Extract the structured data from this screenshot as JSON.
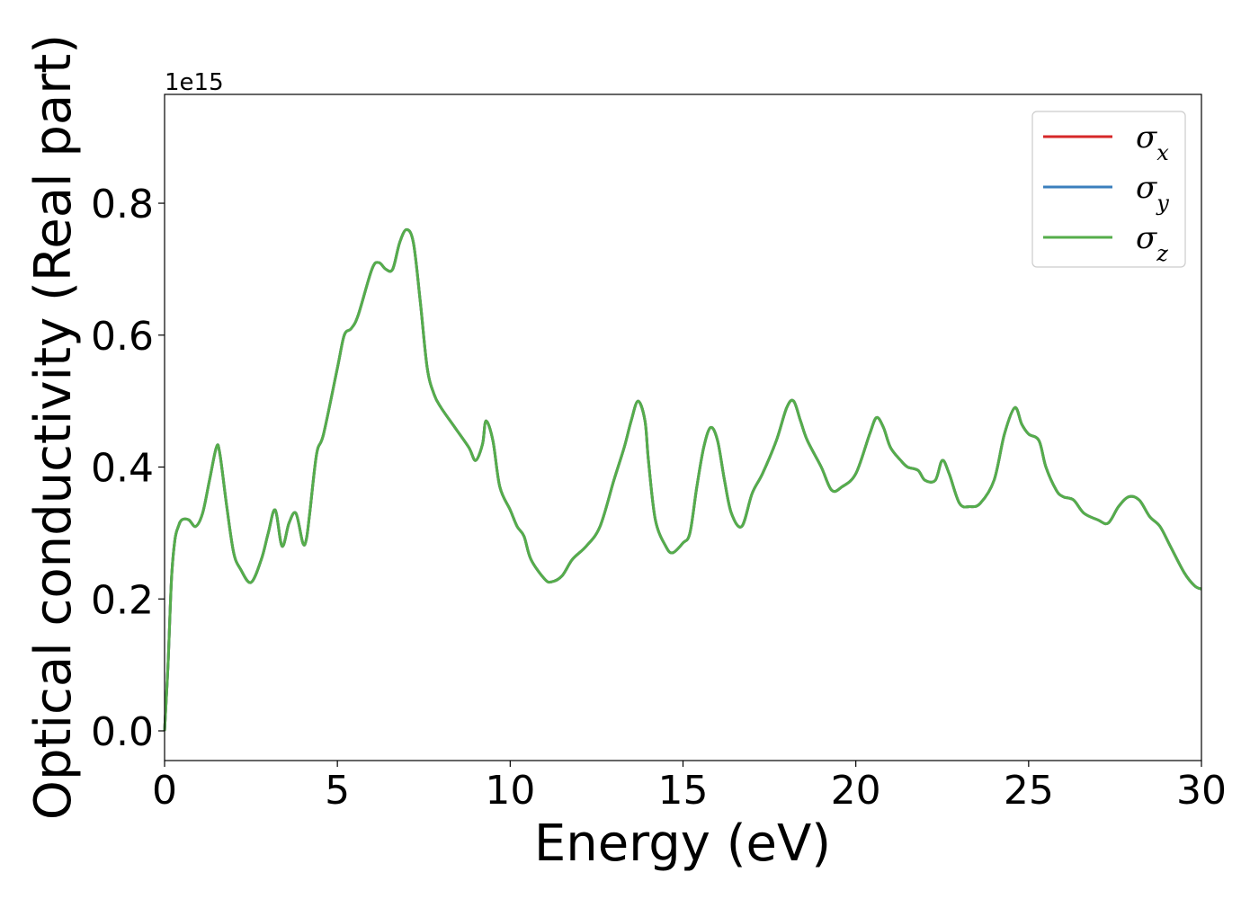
{
  "chart_data": {
    "type": "line",
    "title": "",
    "xlabel": "Energy (eV)",
    "ylabel": "Optical conductivity (Real part)",
    "y_offset_label": "1e15",
    "xlim": [
      0,
      30
    ],
    "ylim": [
      -0.045,
      0.965
    ],
    "y_scale_factor": 1000000000000000.0,
    "grid": false,
    "legend_position": "top-right",
    "x_ticks": [
      0,
      5,
      10,
      15,
      20,
      25,
      30
    ],
    "x_tick_labels": [
      "0",
      "5",
      "10",
      "15",
      "20",
      "25",
      "30"
    ],
    "y_ticks": [
      0.0,
      0.2,
      0.4,
      0.6,
      0.8
    ],
    "y_tick_labels": [
      "0.0",
      "0.2",
      "0.4",
      "0.6",
      "0.8"
    ],
    "series": [
      {
        "name": "σx",
        "label_base": "σ",
        "label_sub": "x",
        "color": "#d62728"
      },
      {
        "name": "σy",
        "label_base": "σ",
        "label_sub": "y",
        "color": "#3a7fbd"
      },
      {
        "name": "σz",
        "label_base": "σ",
        "label_sub": "z",
        "color": "#55ad4b"
      }
    ],
    "x": [
      0,
      0.1,
      0.2,
      0.3,
      0.4,
      0.5,
      0.7,
      0.9,
      1.1,
      1.3,
      1.5,
      1.6,
      1.8,
      2.0,
      2.2,
      2.5,
      2.8,
      3.0,
      3.2,
      3.4,
      3.6,
      3.8,
      4.0,
      4.1,
      4.2,
      4.4,
      4.6,
      5.0,
      5.2,
      5.4,
      5.6,
      6.0,
      6.2,
      6.4,
      6.6,
      6.8,
      7.0,
      7.2,
      7.4,
      7.6,
      7.8,
      8.0,
      8.4,
      8.8,
      9.0,
      9.2,
      9.3,
      9.5,
      9.7,
      10.0,
      10.2,
      10.4,
      10.6,
      11.0,
      11.2,
      11.5,
      11.8,
      12.2,
      12.6,
      13.0,
      13.3,
      13.5,
      13.7,
      13.9,
      14.0,
      14.2,
      14.5,
      14.7,
      15.0,
      15.2,
      15.4,
      15.6,
      15.8,
      16.0,
      16.2,
      16.4,
      16.7,
      17.0,
      17.3,
      17.7,
      18.0,
      18.2,
      18.4,
      18.6,
      19.0,
      19.3,
      19.6,
      20.0,
      20.4,
      20.6,
      20.8,
      21.0,
      21.3,
      21.5,
      21.8,
      22.0,
      22.3,
      22.5,
      22.7,
      23.0,
      23.3,
      23.6,
      24.0,
      24.3,
      24.6,
      24.8,
      25.0,
      25.3,
      25.5,
      25.8,
      26.0,
      26.3,
      26.6,
      27.0,
      27.3,
      27.6,
      27.9,
      28.2,
      28.5,
      28.8,
      29.1,
      29.5,
      29.8,
      30.0
    ],
    "y": [
      0.0,
      0.1,
      0.23,
      0.29,
      0.31,
      0.32,
      0.32,
      0.31,
      0.33,
      0.38,
      0.43,
      0.42,
      0.34,
      0.27,
      0.245,
      0.225,
      0.26,
      0.3,
      0.335,
      0.28,
      0.315,
      0.33,
      0.285,
      0.29,
      0.33,
      0.42,
      0.45,
      0.55,
      0.6,
      0.61,
      0.63,
      0.7,
      0.71,
      0.7,
      0.7,
      0.74,
      0.76,
      0.74,
      0.65,
      0.55,
      0.51,
      0.49,
      0.46,
      0.43,
      0.41,
      0.435,
      0.47,
      0.44,
      0.37,
      0.335,
      0.31,
      0.295,
      0.26,
      0.23,
      0.226,
      0.235,
      0.26,
      0.28,
      0.31,
      0.38,
      0.43,
      0.47,
      0.5,
      0.47,
      0.41,
      0.32,
      0.28,
      0.27,
      0.285,
      0.3,
      0.37,
      0.43,
      0.46,
      0.44,
      0.38,
      0.33,
      0.31,
      0.36,
      0.39,
      0.44,
      0.49,
      0.5,
      0.47,
      0.44,
      0.4,
      0.365,
      0.37,
      0.39,
      0.45,
      0.475,
      0.46,
      0.43,
      0.41,
      0.4,
      0.395,
      0.38,
      0.38,
      0.41,
      0.39,
      0.345,
      0.34,
      0.345,
      0.38,
      0.45,
      0.49,
      0.465,
      0.45,
      0.44,
      0.4,
      0.365,
      0.355,
      0.35,
      0.33,
      0.32,
      0.315,
      0.34,
      0.355,
      0.35,
      0.325,
      0.31,
      0.28,
      0.24,
      0.22,
      0.215
    ]
  }
}
